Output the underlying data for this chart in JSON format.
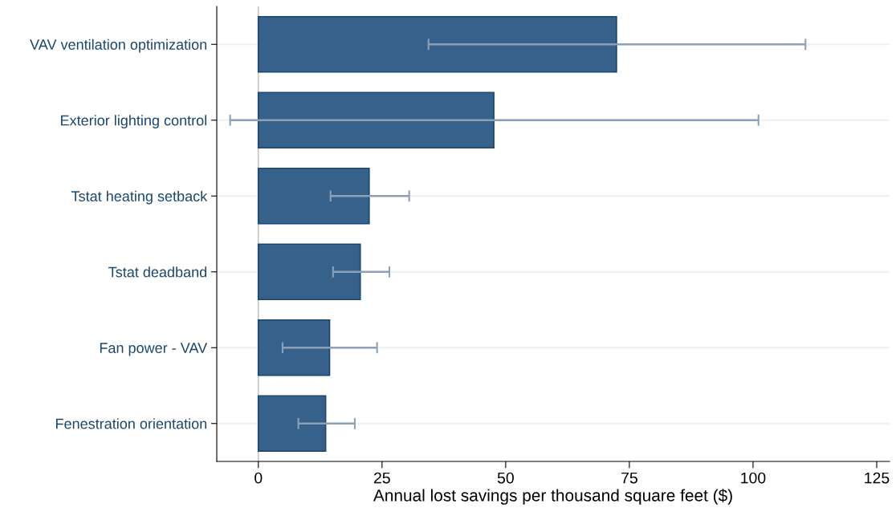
{
  "chart_data": {
    "type": "bar",
    "orientation": "horizontal",
    "categories": [
      "VAV ventilation optimization",
      "Exterior lighting control",
      "Tstat heating setback",
      "Tstat deadband",
      "Fan power - VAV",
      "Fenestration orientation"
    ],
    "values": [
      72.4,
      47.6,
      22.4,
      20.6,
      14.4,
      13.6
    ],
    "errors": [
      [
        34.4,
        110.6
      ],
      [
        -5.7,
        101.1
      ],
      [
        14.6,
        30.5
      ],
      [
        15.1,
        26.5
      ],
      [
        4.9,
        24.0
      ],
      [
        8.1,
        19.5
      ]
    ],
    "color": "#36618a",
    "xlabel": "Annual lost savings per thousand square feet ($)",
    "xlim": [
      -8.4,
      127.6
    ],
    "xticks": [
      0,
      25,
      50,
      75,
      100,
      125
    ],
    "grid": "y",
    "ref_lines": [
      {
        "axis": "x",
        "value": 0,
        "color": "#c8c8c8"
      }
    ]
  }
}
